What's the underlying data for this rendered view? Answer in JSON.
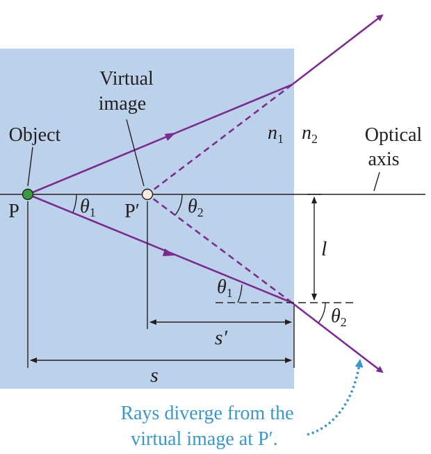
{
  "colors": {
    "medium": "#bcd1ea",
    "ray": "#7d2a90",
    "line": "#231f20",
    "object_point": "#3a9a3f",
    "image_point": "#fbe9e3",
    "callout": "#3a97c9"
  },
  "labels": {
    "virtual_image_line1": "Virtual",
    "virtual_image_line2": "image",
    "object": "Object",
    "optical_axis_line1": "Optical",
    "optical_axis_line2": "axis",
    "point_p": "P",
    "point_p_prime": "P′",
    "n1": "n",
    "n1_sub": "1",
    "n2": "n",
    "n2_sub": "2",
    "theta1_left": "θ",
    "theta1_left_sub": "1",
    "theta2_top": "θ",
    "theta2_top_sub": "2",
    "theta1_bottom": "θ",
    "theta1_bottom_sub": "1",
    "theta2_bottom": "θ",
    "theta2_bottom_sub": "2",
    "l": "l",
    "s_prime": "s′",
    "s": "s"
  },
  "callout": {
    "line1": "Rays diverge from the",
    "line2": "virtual image at P′."
  }
}
